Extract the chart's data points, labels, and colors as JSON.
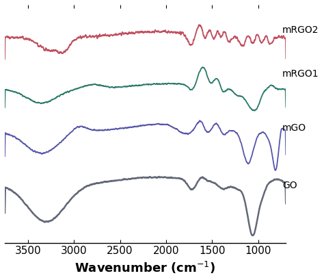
{
  "xlabel": "Wavenumber (cm-1)",
  "xlabel_fontsize": 13,
  "xlim": [
    3750,
    700
  ],
  "background_color": "#ffffff",
  "series": [
    {
      "label": "GO",
      "color": "#636878",
      "lw": 1.8
    },
    {
      "label": "mGO",
      "color": "#5555aa",
      "lw": 1.3
    },
    {
      "label": "mRGO1",
      "color": "#2a7a6a",
      "lw": 1.3
    },
    {
      "label": "mRGO2",
      "color": "#c05060",
      "lw": 1.3
    }
  ],
  "xticks": [
    3500,
    3000,
    2500,
    2000,
    1500,
    1000
  ],
  "tick_fontsize": 11,
  "label_fontsize": 10
}
